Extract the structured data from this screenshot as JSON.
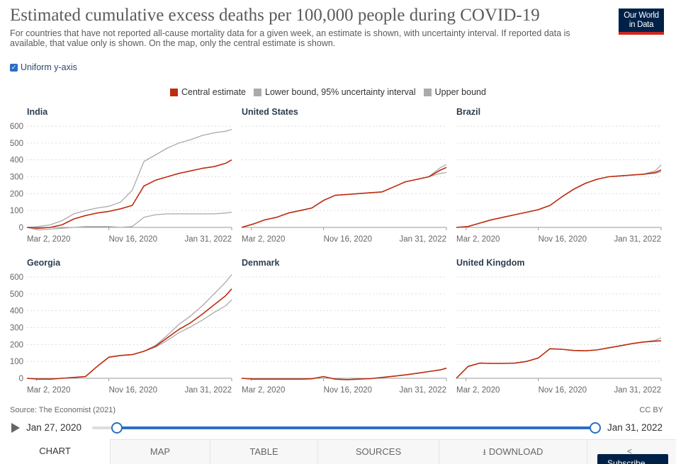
{
  "header": {
    "title": "Estimated cumulative excess deaths per 100,000 people during COVID-19",
    "subtitle": "For countries that have not reported all-cause mortality data for a given week, an estimate is shown, with uncertainty interval. If reported data is available, that value only is shown. On the map, only the central estimate is shown.",
    "logo_line1": "Our World",
    "logo_line2": "in Data"
  },
  "controls": {
    "uniform_axis_label": "Uniform y-axis",
    "uniform_axis_checked": true
  },
  "legend": [
    {
      "label": "Central estimate",
      "color": "#be2c0e"
    },
    {
      "label": "Lower bound, 95% uncertainty interval",
      "color": "#aaaaaa"
    },
    {
      "label": "Upper bound",
      "color": "#aaaaaa"
    }
  ],
  "chart_data": {
    "type": "line",
    "x_tick_labels": [
      "Mar 2, 2020",
      "Nov 16, 2020",
      "Jan 31, 2022"
    ],
    "xlim": [
      "2020-01-27",
      "2022-01-31"
    ],
    "y_ticks": [
      0,
      100,
      200,
      300,
      400,
      500,
      600
    ],
    "ylim": [
      0,
      600
    ],
    "grid": "horizontal dotted",
    "x_dates": [
      "2020-01-27",
      "2020-03-09",
      "2020-04-20",
      "2020-06-01",
      "2020-07-13",
      "2020-08-24",
      "2020-10-05",
      "2020-11-16",
      "2020-12-28",
      "2021-02-08",
      "2021-03-22",
      "2021-05-03",
      "2021-06-14",
      "2021-07-26",
      "2021-09-06",
      "2021-10-18",
      "2021-11-29",
      "2022-01-10",
      "2022-01-31"
    ],
    "facets": [
      {
        "name": "India",
        "series": [
          {
            "name": "Central estimate",
            "values": [
              0,
              -5,
              0,
              15,
              50,
              70,
              85,
              95,
              110,
              130,
              245,
              280,
              300,
              320,
              335,
              350,
              360,
              380,
              400
            ]
          },
          {
            "name": "Lower bound, 95% uncertainty interval",
            "values": [
              0,
              -15,
              -10,
              -5,
              0,
              5,
              5,
              5,
              0,
              5,
              60,
              75,
              80,
              80,
              80,
              80,
              80,
              85,
              90
            ]
          },
          {
            "name": "Upper bound",
            "values": [
              0,
              5,
              15,
              40,
              80,
              100,
              115,
              125,
              150,
              220,
              390,
              430,
              470,
              500,
              520,
              545,
              560,
              570,
              580
            ]
          }
        ]
      },
      {
        "name": "United States",
        "series": [
          {
            "name": "Central estimate",
            "values": [
              0,
              20,
              45,
              60,
              85,
              100,
              115,
              160,
              190,
              195,
              200,
              205,
              210,
              240,
              270,
              285,
              300,
              340,
              355
            ]
          },
          {
            "name": "Lower bound, 95% uncertainty interval",
            "values": [
              0,
              20,
              45,
              60,
              85,
              100,
              115,
              160,
              190,
              195,
              200,
              205,
              210,
              240,
              270,
              285,
              300,
              320,
              325
            ]
          },
          {
            "name": "Upper bound",
            "values": [
              0,
              20,
              45,
              60,
              85,
              100,
              115,
              160,
              190,
              195,
              200,
              205,
              210,
              240,
              270,
              285,
              300,
              355,
              372
            ]
          }
        ]
      },
      {
        "name": "Brazil",
        "series": [
          {
            "name": "Central estimate",
            "values": [
              0,
              5,
              25,
              45,
              60,
              75,
              90,
              105,
              130,
              180,
              225,
              260,
              285,
              300,
              305,
              310,
              315,
              325,
              340
            ]
          },
          {
            "name": "Lower bound, 95% uncertainty interval",
            "values": [
              0,
              5,
              25,
              45,
              60,
              75,
              90,
              105,
              130,
              180,
              225,
              260,
              285,
              300,
              305,
              310,
              315,
              320,
              330
            ]
          },
          {
            "name": "Upper bound",
            "values": [
              0,
              5,
              25,
              45,
              60,
              75,
              90,
              105,
              130,
              180,
              225,
              260,
              285,
              300,
              305,
              310,
              315,
              335,
              370
            ]
          }
        ]
      },
      {
        "name": "Georgia",
        "series": [
          {
            "name": "Central estimate",
            "values": [
              0,
              -5,
              -5,
              0,
              5,
              10,
              70,
              125,
              135,
              140,
              160,
              190,
              240,
              290,
              330,
              380,
              435,
              490,
              530
            ]
          },
          {
            "name": "Lower bound, 95% uncertainty interval",
            "values": [
              0,
              -5,
              -5,
              0,
              5,
              10,
              70,
              125,
              135,
              140,
              160,
              185,
              225,
              270,
              305,
              345,
              390,
              430,
              465
            ]
          },
          {
            "name": "Upper bound",
            "values": [
              0,
              -5,
              -5,
              0,
              5,
              10,
              70,
              125,
              135,
              140,
              160,
              195,
              255,
              320,
              370,
              430,
              500,
              570,
              615
            ]
          }
        ]
      },
      {
        "name": "Denmark",
        "series": [
          {
            "name": "Central estimate",
            "values": [
              0,
              -5,
              -5,
              -5,
              -5,
              -5,
              -3,
              10,
              -5,
              -8,
              -5,
              -2,
              5,
              12,
              20,
              30,
              40,
              50,
              60
            ]
          },
          {
            "name": "Lower bound, 95% uncertainty interval",
            "values": [
              0,
              -5,
              -5,
              -5,
              -5,
              -5,
              -3,
              10,
              -5,
              -8,
              -5,
              -2,
              5,
              12,
              20,
              30,
              40,
              50,
              60
            ]
          },
          {
            "name": "Upper bound",
            "values": [
              0,
              -5,
              -5,
              -5,
              -5,
              -5,
              -3,
              10,
              -5,
              -8,
              -5,
              -2,
              5,
              12,
              20,
              30,
              40,
              50,
              60
            ]
          }
        ]
      },
      {
        "name": "United Kingdom",
        "series": [
          {
            "name": "Central estimate",
            "values": [
              0,
              70,
              90,
              88,
              88,
              90,
              100,
              120,
              175,
              172,
              165,
              163,
              168,
              180,
              192,
              205,
              215,
              220,
              222
            ]
          },
          {
            "name": "Lower bound, 95% uncertainty interval",
            "values": [
              0,
              70,
              90,
              88,
              88,
              90,
              100,
              120,
              175,
              172,
              165,
              163,
              168,
              180,
              192,
              205,
              215,
              220,
              222
            ]
          },
          {
            "name": "Upper bound",
            "values": [
              0,
              70,
              90,
              88,
              88,
              90,
              100,
              120,
              175,
              172,
              165,
              163,
              168,
              180,
              192,
              205,
              215,
              225,
              240
            ]
          }
        ]
      }
    ]
  },
  "footer": {
    "source": "Source: The Economist (2021)",
    "license": "CC BY"
  },
  "timeline": {
    "start_label": "Jan 27, 2020",
    "end_label": "Jan 31, 2022"
  },
  "tabs": [
    {
      "label": "CHART",
      "active": true
    },
    {
      "label": "MAP",
      "active": false
    },
    {
      "label": "TABLE",
      "active": false
    },
    {
      "label": "SOURCES",
      "active": false
    },
    {
      "label": "DOWNLOAD",
      "active": false
    }
  ],
  "subscribe_label": "Subscribe"
}
